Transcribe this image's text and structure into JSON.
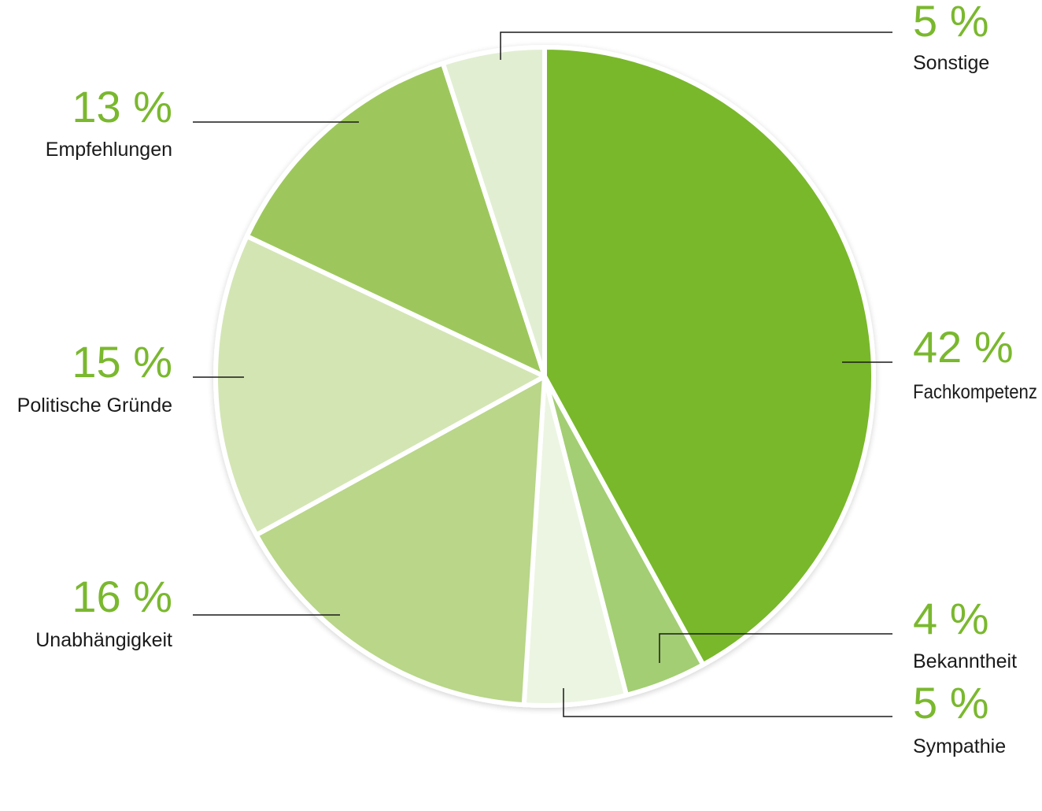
{
  "chart_data": {
    "type": "pie",
    "title": "",
    "unit": "%",
    "slices": [
      {
        "key": "fachkompetenz",
        "label": "Fachkompetenz",
        "value": 42,
        "display": "42 %",
        "color": "#79b82b"
      },
      {
        "key": "bekanntheit",
        "label": "Bekanntheit",
        "value": 4,
        "display": "4 %",
        "color": "#a3ce73"
      },
      {
        "key": "sympathie",
        "label": "Sympathie",
        "value": 5,
        "display": "5 %",
        "color": "#ecf5e2"
      },
      {
        "key": "unabhaengigkeit",
        "label": "Unabhängigkeit",
        "value": 16,
        "display": "16 %",
        "color": "#b9d689"
      },
      {
        "key": "politische-gruende",
        "label": "Politische Gründe",
        "value": 15,
        "display": "15 %",
        "color": "#d4e5b4"
      },
      {
        "key": "empfehlungen",
        "label": "Empfehlungen",
        "value": 13,
        "display": "13 %",
        "color": "#9dc75c"
      },
      {
        "key": "sonstige",
        "label": "Sonstige",
        "value": 5,
        "display": "5 %",
        "color": "#e2eed2"
      }
    ]
  }
}
